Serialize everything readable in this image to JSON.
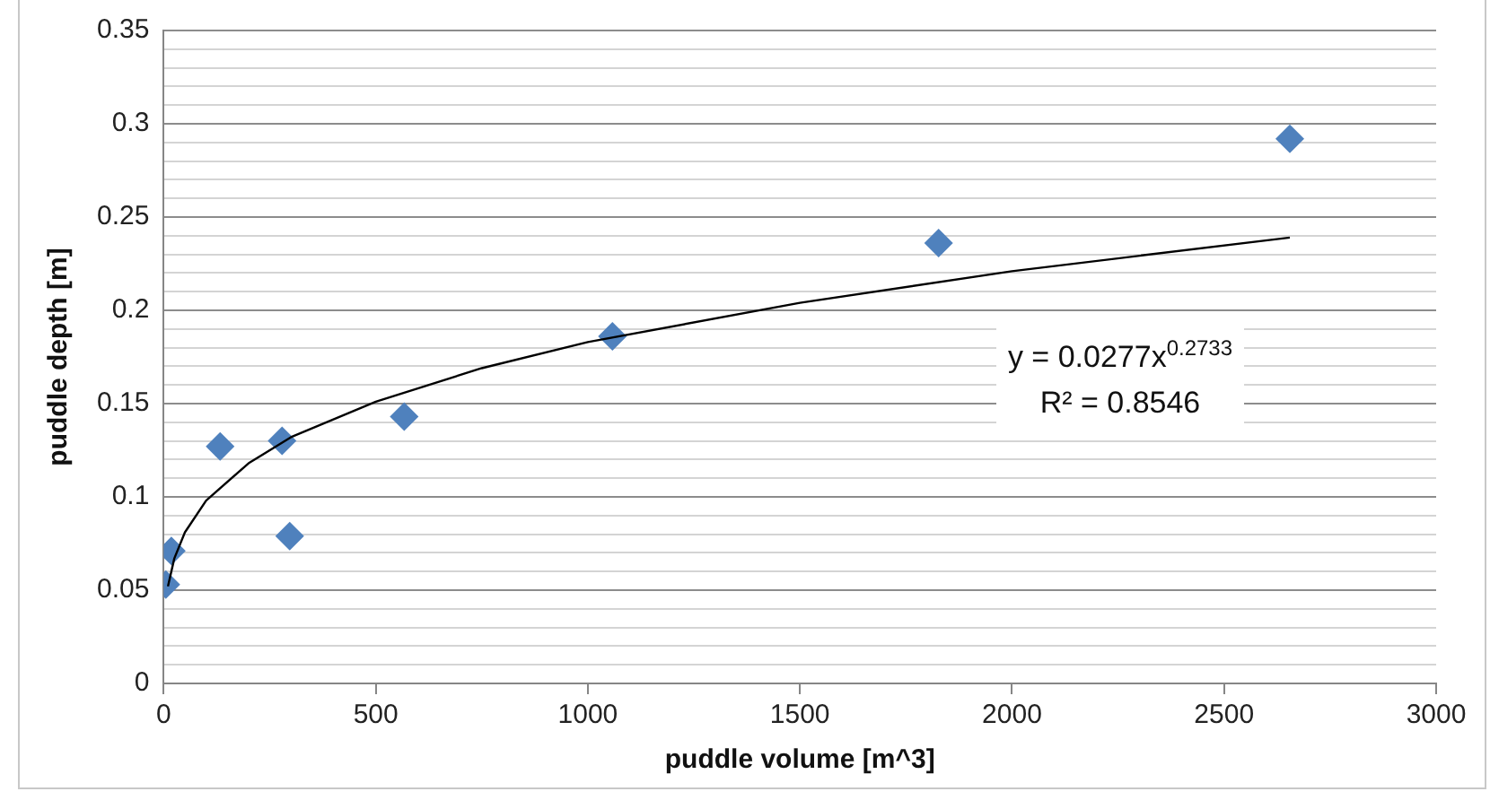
{
  "chart_data": {
    "type": "scatter",
    "xlabel": "puddle volume [m^3]",
    "ylabel": "puddle depth [m]",
    "x": [
      5,
      18,
      133,
      279,
      297,
      567,
      1058,
      1827,
      2655
    ],
    "series": [
      {
        "color": "#4f81bd",
        "marker": "diamond",
        "values": [
          0.053,
          0.071,
          0.127,
          0.13,
          0.079,
          0.143,
          0.186,
          0.236,
          0.292
        ]
      },
      {
        "type": "line",
        "color": "#000000",
        "marker": "none",
        "x": [
          10,
          25,
          50,
          100,
          200,
          300,
          500,
          750,
          1000,
          1500,
          2000,
          2655
        ],
        "values": [
          0.052,
          0.067,
          0.081,
          0.098,
          0.118,
          0.132,
          0.151,
          0.169,
          0.183,
          0.204,
          0.221,
          0.239
        ]
      }
    ],
    "xlim": [
      0,
      3000
    ],
    "xticks": [
      0,
      500,
      1000,
      1500,
      2000,
      2500,
      3000
    ],
    "ylim": [
      0,
      0.35
    ],
    "yticks": [
      0,
      {
        "value": 0.01,
        "label": null
      },
      {
        "value": 0.02,
        "label": null
      },
      {
        "value": 0.03,
        "label": null
      },
      {
        "value": 0.04,
        "label": null
      },
      0.05,
      {
        "value": 0.06,
        "label": null
      },
      {
        "value": 0.07,
        "label": null
      },
      {
        "value": 0.08,
        "label": null
      },
      {
        "value": 0.09,
        "label": null
      },
      0.1,
      {
        "value": 0.11,
        "label": null
      },
      {
        "value": 0.12,
        "label": null
      },
      {
        "value": 0.13,
        "label": null
      },
      {
        "value": 0.14,
        "label": null
      },
      0.15,
      {
        "value": 0.16,
        "label": null
      },
      {
        "value": 0.17,
        "label": null
      },
      {
        "value": 0.18,
        "label": null
      },
      {
        "value": 0.19,
        "label": null
      },
      0.2,
      {
        "value": 0.21,
        "label": null
      },
      {
        "value": 0.22,
        "label": null
      },
      {
        "value": 0.23,
        "label": null
      },
      {
        "value": 0.24,
        "label": null
      },
      0.25,
      {
        "value": 0.26,
        "label": null
      },
      {
        "value": 0.27,
        "label": null
      },
      {
        "value": 0.28,
        "label": null
      },
      {
        "value": 0.29,
        "label": null
      },
      0.3,
      {
        "value": 0.31,
        "label": null
      },
      {
        "value": 0.32,
        "label": null
      },
      {
        "value": 0.33,
        "label": null
      },
      {
        "value": 0.34,
        "label": null
      },
      0.35
    ],
    "grid": "y",
    "legend": false,
    "annotations": [
      "y = 0.0277x$^{0.2733}$",
      "R² = 0.8546"
    ]
  }
}
